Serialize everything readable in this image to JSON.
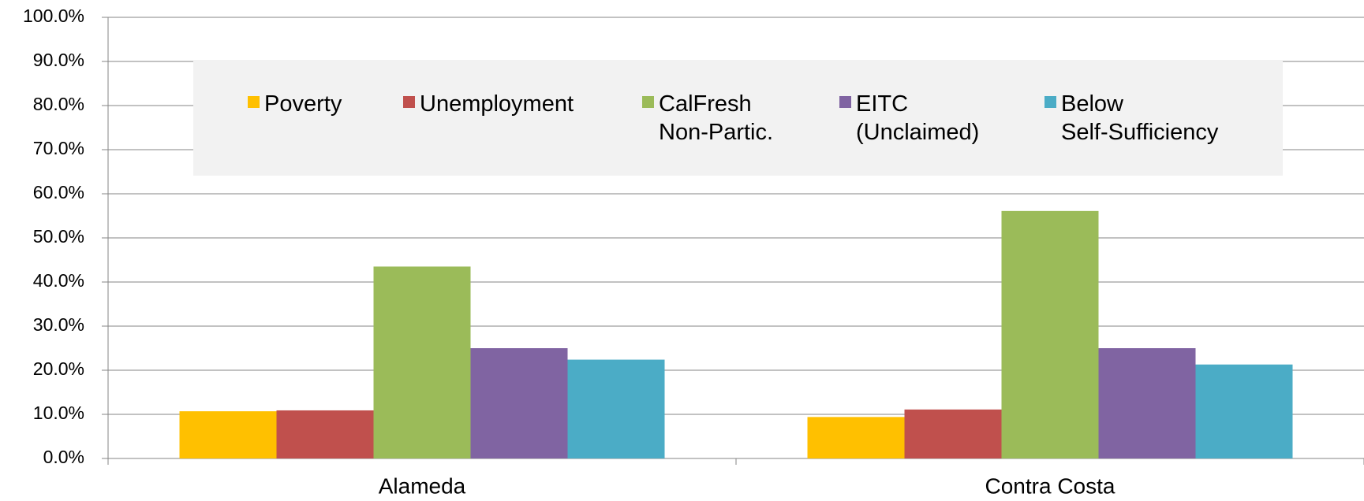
{
  "chart_data": {
    "type": "bar",
    "categories": [
      "Alameda",
      "Contra Costa"
    ],
    "series": [
      {
        "name": "Poverty",
        "color": "#ffc000",
        "values": [
          10.7,
          9.4
        ]
      },
      {
        "name": "Unemployment",
        "color": "#c0504d",
        "values": [
          10.9,
          11.1
        ]
      },
      {
        "name": "CalFresh\nNon-Partic.",
        "color": "#9bbb59",
        "values": [
          43.5,
          56.1
        ]
      },
      {
        "name": "EITC\n(Unclaimed)",
        "color": "#8064a2",
        "values": [
          25.0,
          25.0
        ]
      },
      {
        "name": "Below\nSelf-Sufficiency",
        "color": "#4bacc6",
        "values": [
          22.4,
          21.3
        ]
      }
    ],
    "ylim": [
      0,
      100
    ],
    "yticks": [
      {
        "value": 0,
        "label": "0.0%"
      },
      {
        "value": 10,
        "label": "10.0%"
      },
      {
        "value": 20,
        "label": "20.0%"
      },
      {
        "value": 30,
        "label": "30.0%"
      },
      {
        "value": 40,
        "label": "40.0%"
      },
      {
        "value": 50,
        "label": "50.0%"
      },
      {
        "value": 60,
        "label": "60.0%"
      },
      {
        "value": 70,
        "label": "70.0%"
      },
      {
        "value": 80,
        "label": "80.0%"
      },
      {
        "value": 90,
        "label": "90.0%"
      },
      {
        "value": 100,
        "label": "100.0%"
      }
    ],
    "grid": true,
    "legend": "top"
  }
}
